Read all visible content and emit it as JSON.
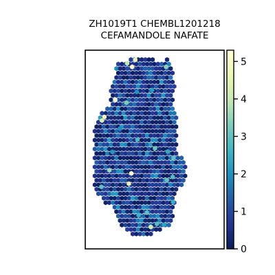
{
  "chart_data": {
    "type": "scatter",
    "title_lines": [
      "ZH1019T1 CHEMBL1201218",
      "CEFAMANDOLE NAFATE"
    ],
    "xlabel": "",
    "ylabel": "",
    "colormap": "YlGnBu",
    "colorbar": {
      "min": 0,
      "max": 5.3,
      "ticks": [
        0,
        1,
        2,
        3,
        4,
        5
      ],
      "tick_labels": [
        "0",
        "1",
        "2",
        "3",
        "4",
        "5"
      ]
    },
    "axis": {
      "xlim": [
        0,
        100
      ],
      "ylim": [
        0,
        100
      ],
      "ticks_visible": false
    },
    "marker": "hexagon",
    "spot_grid": {
      "dx": 2.6,
      "dy": 2.25,
      "seed": 1019
    },
    "tissue_outline": [
      [
        22.2,
        93.8
      ],
      [
        40.2,
        96.6
      ],
      [
        55.0,
        94.6
      ],
      [
        59.4,
        95.8
      ],
      [
        63.0,
        91.0
      ],
      [
        64.4,
        82.0
      ],
      [
        63.2,
        73.0
      ],
      [
        65.6,
        65.8
      ],
      [
        65.6,
        50.0
      ],
      [
        71.0,
        44.4
      ],
      [
        72.8,
        40.0
      ],
      [
        71.6,
        32.8
      ],
      [
        66.0,
        28.6
      ],
      [
        63.8,
        19.6
      ],
      [
        61.2,
        11.2
      ],
      [
        50.8,
        8.6
      ],
      [
        42.8,
        5.2
      ],
      [
        34.2,
        7.0
      ],
      [
        26.4,
        11.8
      ],
      [
        21.6,
        19.6
      ],
      [
        12.2,
        24.2
      ],
      [
        6.8,
        31.0
      ],
      [
        6.6,
        46.4
      ],
      [
        5.6,
        55.0
      ],
      [
        6.6,
        62.6
      ],
      [
        8.6,
        66.4
      ],
      [
        14.2,
        70.4
      ],
      [
        18.0,
        73.2
      ],
      [
        18.6,
        80.0
      ],
      [
        21.2,
        87.0
      ],
      [
        22.2,
        93.8
      ]
    ],
    "high_spots": [
      {
        "x": 33.8,
        "y": 91.6,
        "value": 5.0
      },
      {
        "x": 36.0,
        "y": 95.2,
        "value": 4.6
      },
      {
        "x": 30.2,
        "y": 93.4,
        "value": 3.9
      },
      {
        "x": 58.2,
        "y": 91.6,
        "value": 3.4
      },
      {
        "x": 21.6,
        "y": 75.0,
        "value": 5.0
      },
      {
        "x": 13.8,
        "y": 66.4,
        "value": 4.8
      },
      {
        "x": 12.0,
        "y": 64.6,
        "value": 4.2
      },
      {
        "x": 29.6,
        "y": 73.6,
        "value": 3.3
      },
      {
        "x": 37.6,
        "y": 55.0,
        "value": 2.8
      },
      {
        "x": 50.2,
        "y": 50.6,
        "value": 3.1
      },
      {
        "x": 63.6,
        "y": 45.8,
        "value": 3.0
      },
      {
        "x": 59.4,
        "y": 49.0,
        "value": 2.4
      },
      {
        "x": 17.4,
        "y": 39.6,
        "value": 3.6
      },
      {
        "x": 33.2,
        "y": 38.0,
        "value": 5.0
      },
      {
        "x": 31.4,
        "y": 32.8,
        "value": 4.6
      },
      {
        "x": 58.8,
        "y": 34.6,
        "value": 3.0
      },
      {
        "x": 63.0,
        "y": 36.2,
        "value": 2.9
      },
      {
        "x": 11.6,
        "y": 31.2,
        "value": 3.0
      },
      {
        "x": 63.2,
        "y": 23.6,
        "value": 2.5
      },
      {
        "x": 44.4,
        "y": 18.2,
        "value": 3.0
      },
      {
        "x": 47.2,
        "y": 11.0,
        "value": 4.2
      },
      {
        "x": 51.6,
        "y": 12.6,
        "value": 2.9
      },
      {
        "x": 56.8,
        "y": 12.2,
        "value": 2.3
      },
      {
        "x": 38.4,
        "y": 17.0,
        "value": 2.6
      },
      {
        "x": 19.6,
        "y": 48.8,
        "value": 2.1
      },
      {
        "x": 48.2,
        "y": 80.0,
        "value": 2.2
      },
      {
        "x": 37.2,
        "y": 79.0,
        "value": 2.0
      },
      {
        "x": 25.0,
        "y": 60.6,
        "value": 2.0
      }
    ]
  }
}
